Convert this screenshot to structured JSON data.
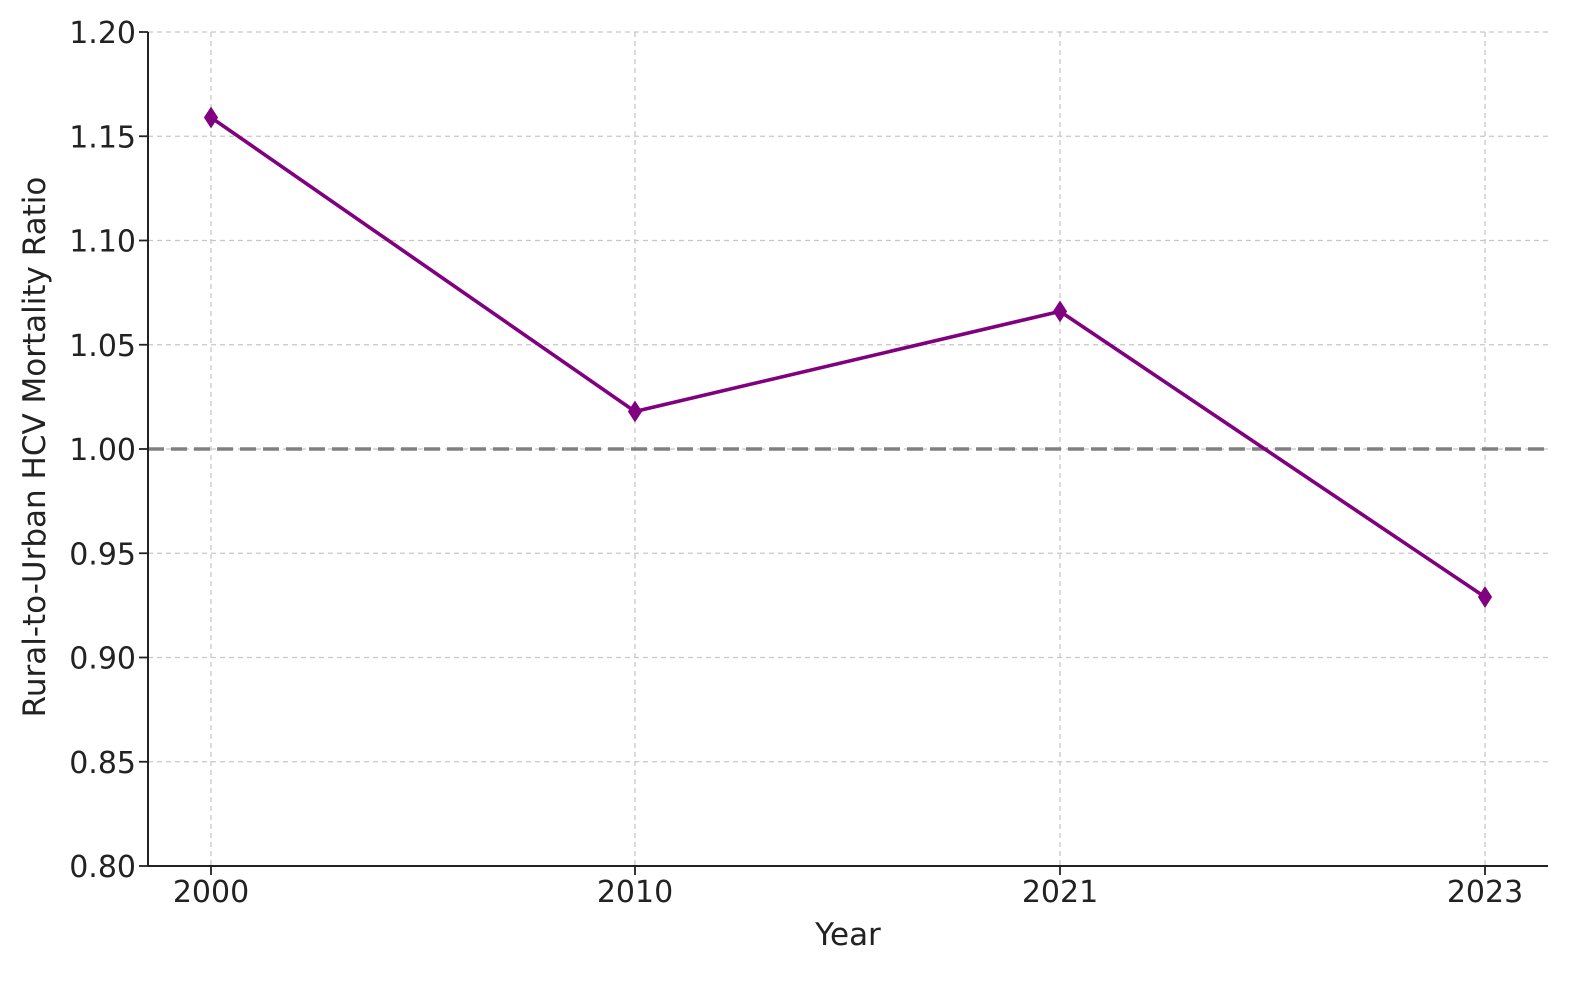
{
  "chart_data": {
    "type": "line",
    "title": "",
    "xlabel": "Year",
    "ylabel": "Rural-to-Urban HCV Mortality Ratio",
    "categories": [
      "2000",
      "2010",
      "2021",
      "2023"
    ],
    "series": [
      {
        "values": [
          1.159,
          1.018,
          1.066,
          0.929
        ],
        "color": "#800080",
        "marker": "diamond"
      }
    ],
    "ylim": [
      0.8,
      1.2
    ],
    "yticks": [
      "0.80",
      "0.85",
      "0.90",
      "0.95",
      "1.00",
      "1.05",
      "1.10",
      "1.15",
      "1.20"
    ],
    "reference_line": {
      "y": 1.0,
      "style": "dashed",
      "color": "#808080"
    },
    "grid": true,
    "legend": "none"
  }
}
